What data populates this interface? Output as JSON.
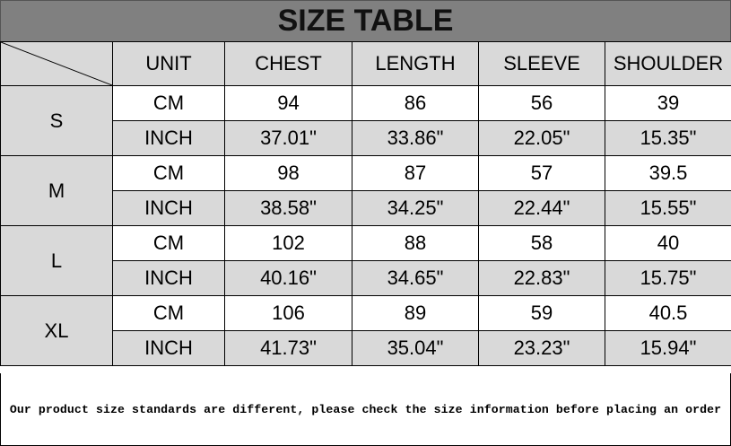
{
  "title": "SIZE TABLE",
  "headers": [
    "UNIT",
    "CHEST",
    "LENGTH",
    "SLEEVE",
    "SHOULDER"
  ],
  "sizes": [
    {
      "size": "S",
      "rows": [
        {
          "unit": "CM",
          "values": [
            "94",
            "86",
            "56",
            "39"
          ]
        },
        {
          "unit": "INCH",
          "values": [
            "37.01\"",
            "33.86\"",
            "22.05\"",
            "15.35\""
          ]
        }
      ]
    },
    {
      "size": "M",
      "rows": [
        {
          "unit": "CM",
          "values": [
            "98",
            "87",
            "57",
            "39.5"
          ]
        },
        {
          "unit": "INCH",
          "values": [
            "38.58\"",
            "34.25\"",
            "22.44\"",
            "15.55\""
          ]
        }
      ]
    },
    {
      "size": "L",
      "rows": [
        {
          "unit": "CM",
          "values": [
            "102",
            "88",
            "58",
            "40"
          ]
        },
        {
          "unit": "INCH",
          "values": [
            "40.16\"",
            "34.65\"",
            "22.83\"",
            "15.75\""
          ]
        }
      ]
    },
    {
      "size": "XL",
      "rows": [
        {
          "unit": "CM",
          "values": [
            "106",
            "89",
            "59",
            "40.5"
          ]
        },
        {
          "unit": "INCH",
          "values": [
            "41.73\"",
            "35.04\"",
            "23.23\"",
            "15.94\""
          ]
        }
      ]
    }
  ],
  "footer": "Our product size standards are different, please check the size information before placing an order",
  "colors": {
    "title_bg": "#808080",
    "cell_gray": "#d9d9d9",
    "cell_white": "#ffffff"
  }
}
